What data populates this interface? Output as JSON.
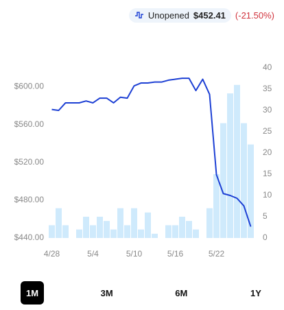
{
  "header": {
    "status": "Unopened",
    "price": "$452.41",
    "change": "(-21.50%)"
  },
  "chart_data": {
    "type": "combo",
    "categories": [
      "4/28",
      null,
      null,
      null,
      null,
      null,
      "5/4",
      null,
      null,
      null,
      null,
      null,
      "5/10",
      null,
      null,
      null,
      null,
      null,
      "5/16",
      null,
      null,
      null,
      null,
      null,
      "5/22",
      null,
      null,
      null,
      null,
      null
    ],
    "series": [
      {
        "type": "bar",
        "axis": "y2",
        "color": "#cfeafc",
        "values": [
          3,
          7,
          3,
          0,
          2,
          5,
          3,
          5,
          4,
          2,
          7,
          3,
          7,
          2,
          6,
          1,
          0,
          3,
          3,
          5,
          4,
          2,
          0,
          7,
          15,
          27,
          34,
          36,
          27,
          22
        ]
      },
      {
        "type": "line",
        "axis": "y",
        "color": "#1c3fd4",
        "values": [
          576,
          575,
          583,
          583,
          583,
          585,
          583,
          588,
          588,
          583,
          589,
          588,
          601,
          604,
          604,
          605,
          605,
          607,
          608,
          609,
          609,
          596,
          608,
          592,
          507,
          487,
          485,
          482,
          474,
          452
        ]
      }
    ],
    "ylim": [
      440,
      620
    ],
    "yticks": [
      {
        "value": 440,
        "label": "$440.00"
      },
      {
        "value": 480,
        "label": "$480.00"
      },
      {
        "value": 520,
        "label": "$520.00"
      },
      {
        "value": 560,
        "label": "$560.00"
      },
      {
        "value": 600,
        "label": "$600.00"
      }
    ],
    "y2lim": [
      0,
      40
    ],
    "y2ticks": [
      0,
      5,
      10,
      15,
      20,
      25,
      30,
      35,
      40
    ],
    "grid": false
  },
  "ranges": [
    "1M",
    "3M",
    "6M",
    "1Y"
  ]
}
